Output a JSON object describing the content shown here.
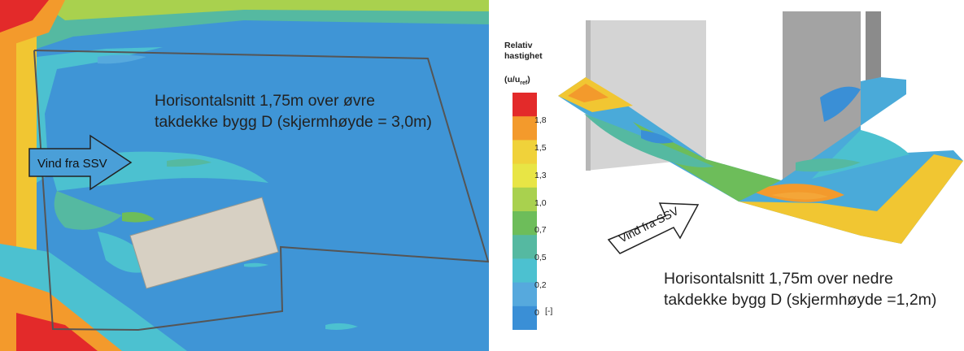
{
  "left_panel": {
    "caption_line1": "Horisontalsnitt 1,75m over øvre",
    "caption_line2": "takdekke bygg D (skjermhøyde = 3,0m)",
    "wind_label": "Vind fra SSV"
  },
  "right_panel": {
    "caption_line1": "Horisontalsnitt 1,75m over nedre",
    "caption_line2": "takdekke bygg D (skjermhøyde =1,2m)",
    "wind_label": "Vind fra SSV"
  },
  "legend": {
    "title_line1": "Relativ",
    "title_line2": "hastighet",
    "unit_prefix": "(u/u",
    "unit_sub": "ref",
    "unit_suffix": ")",
    "ticks": [
      "1,8",
      "1,5",
      "1,3",
      "1,0",
      "0,7",
      "0,5",
      "0,2",
      "0"
    ],
    "unit_bracket": "[-]",
    "colors": [
      "#e32a2a",
      "#f39a2c",
      "#f0d23a",
      "#e8e545",
      "#a9d14e",
      "#6dbd5a",
      "#55b9a1",
      "#4cc1d0",
      "#56a9dd",
      "#3a8fd6"
    ]
  }
}
